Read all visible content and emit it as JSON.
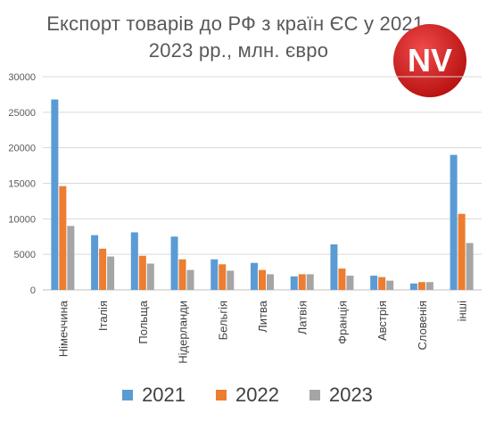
{
  "title_line1": "Експорт товарів до РФ з країн ЄС у 2021-",
  "title_line2": "2023 рр., млн. євро",
  "logo": {
    "text": "NV",
    "color": "#d11f1f"
  },
  "colors": {
    "2021": "#5b9bd5",
    "2022": "#ed7d31",
    "2023": "#a5a5a5",
    "grid": "#d9d9d9",
    "axis_text": "#595959"
  },
  "chart_data": {
    "type": "bar",
    "title": "Експорт товарів до РФ з країн ЄС у 2021-2023 рр., млн. євро",
    "xlabel": "",
    "ylabel": "",
    "ylim": [
      0,
      30000
    ],
    "yticks": [
      0,
      5000,
      10000,
      15000,
      20000,
      25000,
      30000
    ],
    "grid": true,
    "legend_position": "bottom",
    "categories": [
      "Німеччина",
      "Італія",
      "Польща",
      "Нідерланди",
      "Бельгія",
      "Литва",
      "Латвія",
      "Франція",
      "Австрія",
      "Словенія",
      "інші"
    ],
    "series": [
      {
        "name": "2021",
        "color": "#5b9bd5",
        "values": [
          26800,
          7700,
          8100,
          7500,
          4300,
          3800,
          1900,
          6400,
          2000,
          900,
          19000
        ]
      },
      {
        "name": "2022",
        "color": "#ed7d31",
        "values": [
          14600,
          5800,
          4800,
          4300,
          3600,
          2800,
          2200,
          3000,
          1800,
          1100,
          10700
        ]
      },
      {
        "name": "2023",
        "color": "#a5a5a5",
        "values": [
          9000,
          4700,
          3700,
          2800,
          2700,
          2200,
          2200,
          2000,
          1300,
          1100,
          6600
        ]
      }
    ]
  }
}
